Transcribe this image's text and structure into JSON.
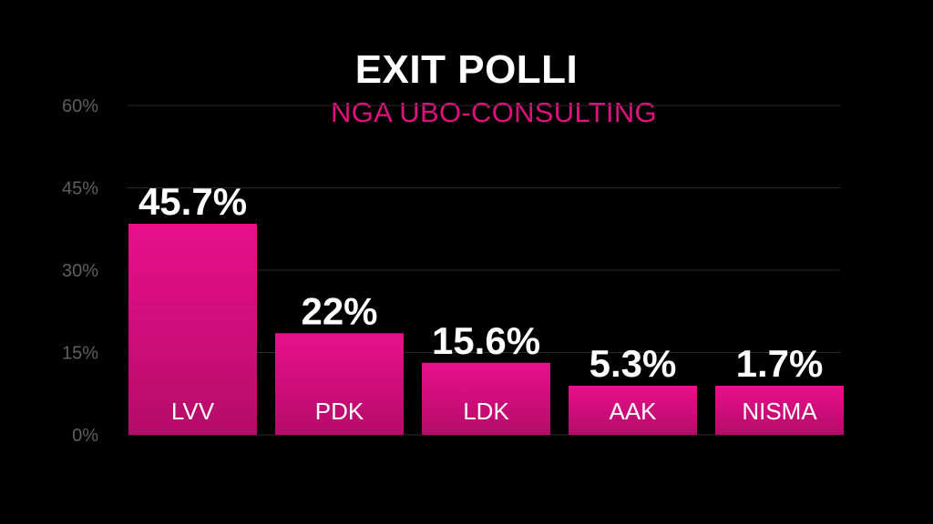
{
  "chart_data": {
    "type": "bar",
    "title": "EXIT POLLI",
    "subtitle": "NGA UBO-CONSULTING",
    "categories": [
      "LVV",
      "PDK",
      "LDK",
      "AAK",
      "NISMA"
    ],
    "values": [
      45.7,
      22,
      15.6,
      5.3,
      1.7
    ],
    "value_labels": [
      "45.7%",
      "22%",
      "15.6%",
      "5.3%",
      "1.7%"
    ],
    "yticks": [
      0,
      15,
      30,
      45,
      60
    ],
    "ytick_labels": [
      "0%",
      "15%",
      "30%",
      "45%",
      "60%"
    ],
    "ylim": [
      0,
      60
    ],
    "grid": true
  },
  "colors": {
    "accent": "#e0117f",
    "bar_top": "#e8108a",
    "bar_bottom": "#b50b6a",
    "grid": "#2a2a2a",
    "background": "#000000"
  }
}
